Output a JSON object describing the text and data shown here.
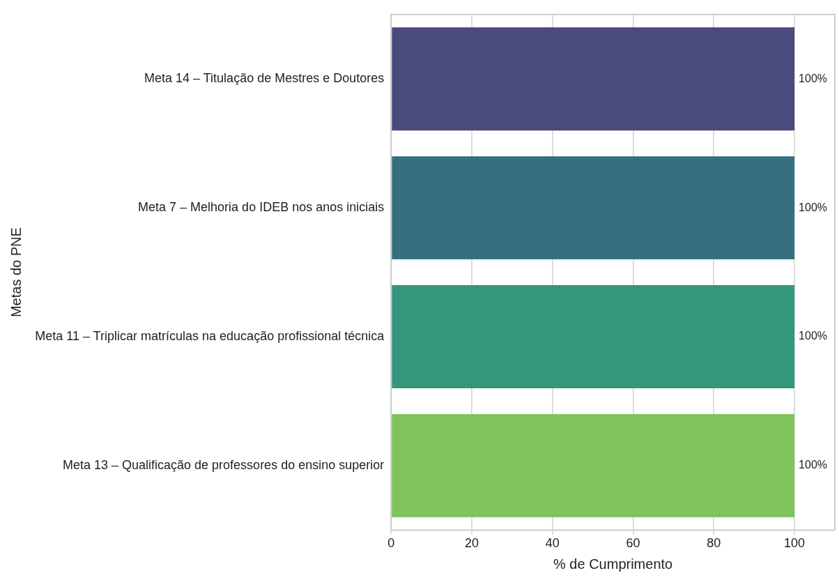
{
  "chart_data": {
    "type": "bar",
    "orientation": "horizontal",
    "xlabel": "% de Cumprimento",
    "ylabel": "Metas do PNE",
    "categories": [
      "Meta 14 – Titulação de Mestres e Doutores",
      "Meta 7 – Melhoria do IDEB nos anos iniciais",
      "Meta 11 – Triplicar matrículas na educação profissional técnica",
      "Meta 13 – Qualificação de professores do ensino superior"
    ],
    "values": [
      100,
      100,
      100,
      100
    ],
    "colors": [
      "#4a4a7d",
      "#35707f",
      "#34977b",
      "#80c35f"
    ],
    "value_labels": [
      "100%",
      "100%",
      "100%",
      "100%"
    ],
    "xlim": [
      0,
      110
    ],
    "xticks": [
      0,
      20,
      40,
      60,
      80,
      100
    ],
    "grid": "x",
    "legend": false
  }
}
